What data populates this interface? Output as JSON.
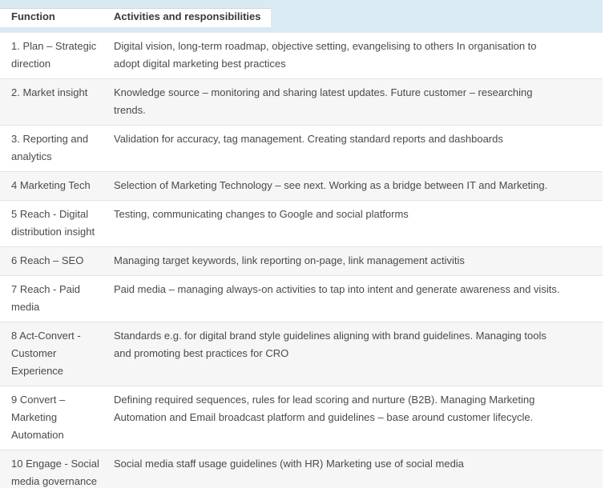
{
  "colors": {
    "header_band": "#d9eaf2",
    "shaded_row": "#f6f6f6",
    "separator": "#e4e4e4",
    "header_text": "#3a3a3a",
    "body_text": "#4a4a4a"
  },
  "table": {
    "columns": [
      "Function",
      "Activities and responsibilities"
    ],
    "rows": [
      {
        "function": "1. Plan – Strategic\ndirection",
        "activities": "Digital vision, long-term roadmap, objective setting, evangelising to others In organisation to\nadopt digital marketing best practices",
        "shaded": false
      },
      {
        "function": "2. Market insight",
        "activities": "Knowledge source – monitoring and sharing latest updates. Future customer – researching\ntrends.",
        "shaded": true
      },
      {
        "function": "3. Reporting and\nanalytics",
        "activities": "Validation for accuracy, tag management. Creating standard reports and dashboards",
        "shaded": false
      },
      {
        "function": "4 Marketing Tech",
        "activities": "Selection of Marketing Technology – see next. Working as a bridge between IT and Marketing.",
        "shaded": true
      },
      {
        "function": "5 Reach - Digital\ndistribution insight",
        "activities": "Testing, communicating changes to Google and social platforms",
        "shaded": false
      },
      {
        "function": "6 Reach – SEO",
        "activities": "Managing target keywords, link reporting on-page, link management activitis",
        "shaded": true
      },
      {
        "function": "7 Reach - Paid\nmedia",
        "activities": "Paid media – managing always-on activities to tap into intent and generate awareness and visits.",
        "shaded": false
      },
      {
        "function": "8 Act-Convert -\nCustomer\nExperience",
        "activities": "Standards e.g. for digital brand style guidelines aligning with brand guidelines. Managing tools\nand promoting best practices for CRO",
        "shaded": true
      },
      {
        "function": "9 Convert –\nMarketing\nAutomation",
        "activities": "Defining required sequences, rules for lead scoring and nurture (B2B). Managing Marketing\nAutomation and Email broadcast platform and guidelines – base around customer lifecycle.",
        "shaded": false
      },
      {
        "function": "10 Engage - Social\nmedia governance",
        "activities": "Social media staff usage guidelines (with HR) Marketing use of social media",
        "shaded": true
      }
    ]
  }
}
